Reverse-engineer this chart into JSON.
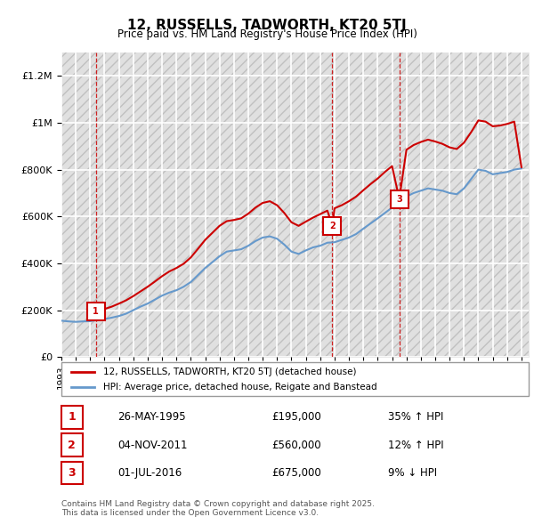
{
  "title": "12, RUSSELLS, TADWORTH, KT20 5TJ",
  "subtitle": "Price paid vs. HM Land Registry's House Price Index (HPI)",
  "ylabel_ticks": [
    "£0",
    "£200K",
    "£400K",
    "£600K",
    "£800K",
    "£1M",
    "£1.2M"
  ],
  "ylim": [
    0,
    1300000
  ],
  "yticks": [
    0,
    200000,
    400000,
    600000,
    800000,
    1000000,
    1200000
  ],
  "xlim_start": 1993.0,
  "xlim_end": 2025.5,
  "background_color": "#ffffff",
  "plot_bg_color": "#f0f0f0",
  "grid_color": "#ffffff",
  "hatch_color": "#cccccc",
  "sale_marker_color": "#cc0000",
  "vline_color": "#cc0000",
  "hpi_line_color": "#6699cc",
  "price_line_color": "#cc0000",
  "legend_box_color": "#cc0000",
  "transactions": [
    {
      "num": 1,
      "date_x": 1995.4,
      "price": 195000,
      "date_str": "26-MAY-1995",
      "price_str": "£195,000",
      "change": "35% ↑ HPI"
    },
    {
      "num": 2,
      "date_x": 2011.84,
      "price": 560000,
      "date_str": "04-NOV-2011",
      "price_str": "£560,000",
      "change": "12% ↑ HPI"
    },
    {
      "num": 3,
      "date_x": 2016.5,
      "price": 675000,
      "date_str": "01-JUL-2016",
      "price_str": "£675,000",
      "change": "9% ↓ HPI"
    }
  ],
  "hpi_data_x": [
    1993.0,
    1993.5,
    1994.0,
    1994.5,
    1995.0,
    1995.5,
    1996.0,
    1996.5,
    1997.0,
    1997.5,
    1998.0,
    1998.5,
    1999.0,
    1999.5,
    2000.0,
    2000.5,
    2001.0,
    2001.5,
    2002.0,
    2002.5,
    2003.0,
    2003.5,
    2004.0,
    2004.5,
    2005.0,
    2005.5,
    2006.0,
    2006.5,
    2007.0,
    2007.5,
    2008.0,
    2008.5,
    2009.0,
    2009.5,
    2010.0,
    2010.5,
    2011.0,
    2011.5,
    2012.0,
    2012.5,
    2013.0,
    2013.5,
    2014.0,
    2014.5,
    2015.0,
    2015.5,
    2016.0,
    2016.5,
    2017.0,
    2017.5,
    2018.0,
    2018.5,
    2019.0,
    2019.5,
    2020.0,
    2020.5,
    2021.0,
    2021.5,
    2022.0,
    2022.5,
    2023.0,
    2023.5,
    2024.0,
    2024.5,
    2025.0
  ],
  "hpi_data_y": [
    155000,
    152000,
    150000,
    152000,
    153000,
    158000,
    162000,
    168000,
    175000,
    185000,
    200000,
    215000,
    228000,
    245000,
    262000,
    275000,
    285000,
    300000,
    320000,
    350000,
    380000,
    405000,
    430000,
    450000,
    455000,
    460000,
    475000,
    495000,
    510000,
    515000,
    505000,
    480000,
    450000,
    440000,
    455000,
    468000,
    475000,
    488000,
    490000,
    500000,
    510000,
    525000,
    548000,
    570000,
    592000,
    615000,
    638000,
    660000,
    685000,
    700000,
    710000,
    720000,
    715000,
    710000,
    700000,
    695000,
    720000,
    760000,
    800000,
    795000,
    780000,
    785000,
    790000,
    800000,
    805000
  ],
  "price_data_x": [
    1995.4,
    1995.5,
    1996.0,
    1996.5,
    1997.0,
    1997.5,
    1998.0,
    1998.5,
    1999.0,
    1999.5,
    2000.0,
    2000.5,
    2001.0,
    2001.5,
    2002.0,
    2002.5,
    2003.0,
    2003.5,
    2004.0,
    2004.5,
    2005.0,
    2005.5,
    2006.0,
    2006.5,
    2007.0,
    2007.5,
    2008.0,
    2008.5,
    2009.0,
    2009.5,
    2010.0,
    2010.5,
    2011.0,
    2011.5,
    2011.84,
    2012.0,
    2012.5,
    2013.0,
    2013.5,
    2014.0,
    2014.5,
    2015.0,
    2015.5,
    2016.0,
    2016.5,
    2017.0,
    2017.5,
    2018.0,
    2018.5,
    2019.0,
    2019.5,
    2020.0,
    2020.5,
    2021.0,
    2021.5,
    2022.0,
    2022.5,
    2023.0,
    2023.5,
    2024.0,
    2024.5,
    2025.0
  ],
  "price_data_y": [
    195000,
    198000,
    205000,
    215000,
    228000,
    242000,
    260000,
    280000,
    300000,
    322000,
    345000,
    365000,
    380000,
    398000,
    425000,
    462000,
    500000,
    530000,
    560000,
    580000,
    585000,
    592000,
    612000,
    638000,
    658000,
    665000,
    648000,
    615000,
    575000,
    560000,
    578000,
    595000,
    610000,
    625000,
    560000,
    635000,
    648000,
    665000,
    685000,
    712000,
    738000,
    762000,
    790000,
    815000,
    675000,
    885000,
    905000,
    918000,
    928000,
    920000,
    910000,
    895000,
    888000,
    915000,
    960000,
    1010000,
    1005000,
    985000,
    988000,
    995000,
    1005000,
    810000
  ],
  "footnote": "Contains HM Land Registry data © Crown copyright and database right 2025.\nThis data is licensed under the Open Government Licence v3.0."
}
